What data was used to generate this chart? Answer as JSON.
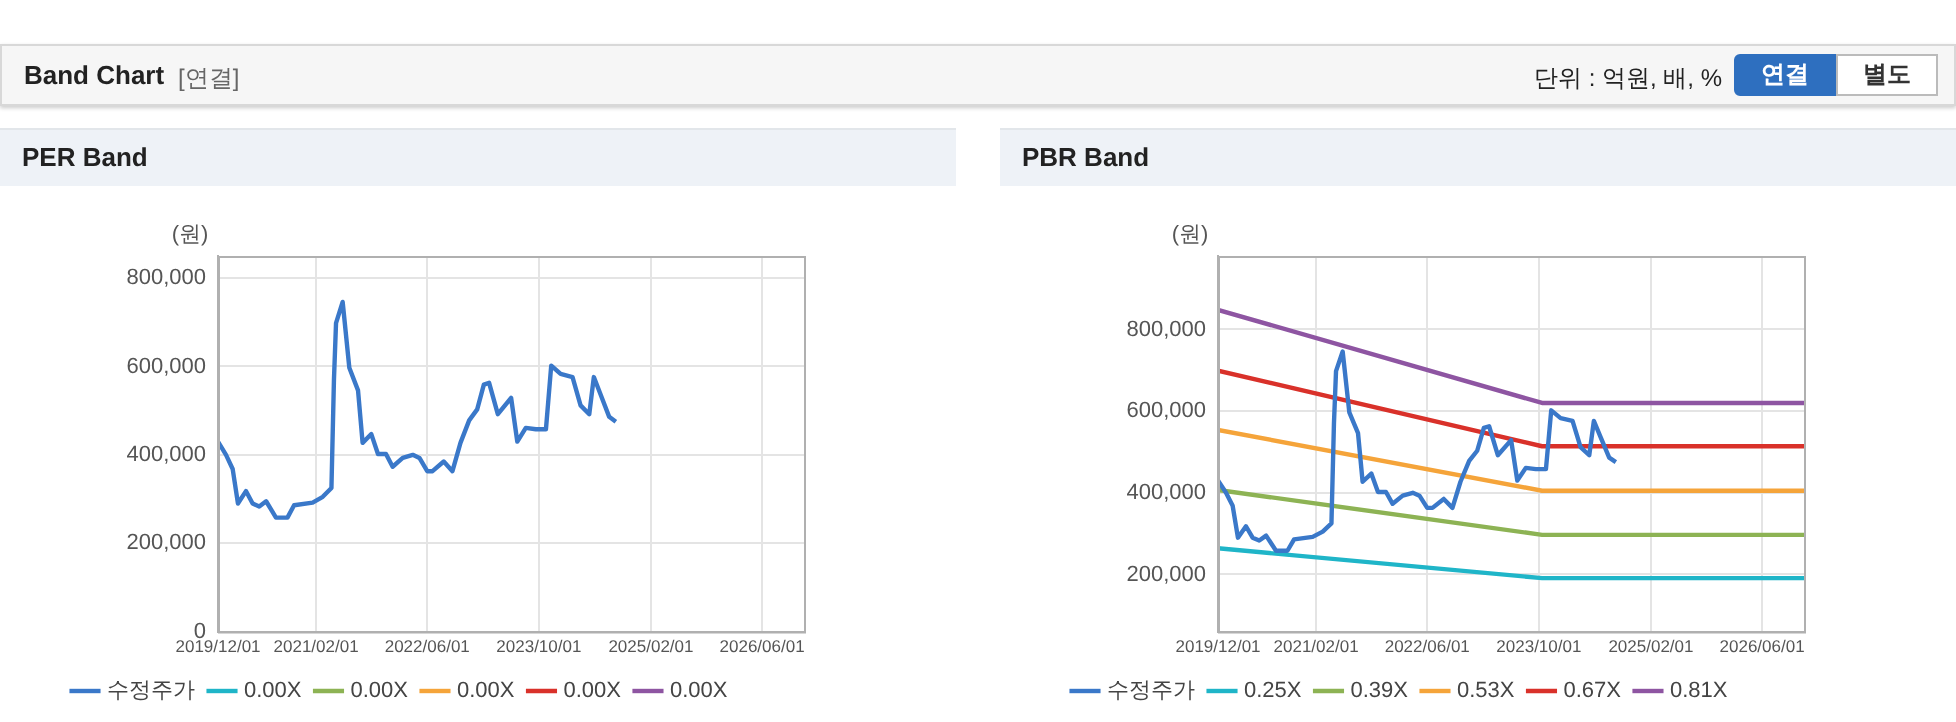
{
  "chart_data": [
    {
      "type": "line",
      "title": "PER Band",
      "ylabel": "(원)",
      "annotations": [
        "Band Chart",
        "[연결]",
        "단위 : 억원, 배, %",
        "연결",
        "별도"
      ],
      "x": [
        "2019-12-01",
        "2020-01-05",
        "2020-02-03",
        "2020-02-26",
        "2020-04-01",
        "2020-04-30",
        "2020-05-29",
        "2020-06-28",
        "2020-08-10",
        "2020-09-29",
        "2020-10-28",
        "2021-01-17",
        "2021-03-02",
        "2021-04-09",
        "2021-04-20",
        "2021-04-29",
        "2021-05-28",
        "2021-06-26",
        "2021-08-03",
        "2021-08-23",
        "2021-09-30",
        "2021-10-29",
        "2021-12-03",
        "2022-01-01",
        "2022-02-14",
        "2022-03-30",
        "2022-04-28",
        "2022-06-01",
        "2022-06-24",
        "2022-08-12",
        "2022-09-19",
        "2022-10-24",
        "2022-12-01",
        "2023-01-05",
        "2023-02-03",
        "2023-02-26",
        "2023-04-05",
        "2023-06-02",
        "2023-06-29",
        "2023-08-05",
        "2023-09-18",
        "2023-11-01",
        "2023-11-24",
        "2024-01-04",
        "2024-02-25",
        "2024-03-31",
        "2024-05-08",
        "2024-05-28",
        "2024-06-26",
        "2024-08-03",
        "2024-09-01"
      ],
      "series": [
        {
          "name": "수정주가",
          "color": "#3a78c9",
          "values": [
            430000,
            400000,
            368000,
            290000,
            318000,
            290000,
            283000,
            295000,
            258000,
            258000,
            286000,
            292000,
            305000,
            325000,
            571000,
            698000,
            746000,
            597000,
            546000,
            427000,
            447000,
            402000,
            402000,
            373000,
            393000,
            400000,
            393000,
            363000,
            363000,
            385000,
            363000,
            427000,
            478000,
            503000,
            559000,
            563000,
            492000,
            529000,
            430000,
            461000,
            458000,
            458000,
            602000,
            583000,
            576000,
            512000,
            492000,
            576000,
            537000,
            486000,
            475000
          ]
        },
        {
          "name": "0.00X",
          "color": "#1fb5c8",
          "values": [
            null,
            null,
            null,
            null,
            null,
            null,
            null,
            null,
            null,
            null,
            null,
            null,
            null,
            null,
            null,
            null,
            null,
            null,
            null,
            null,
            null,
            null,
            null,
            null,
            null,
            null,
            null,
            null,
            null,
            null,
            null,
            null,
            null,
            null,
            null,
            null,
            null,
            null,
            null,
            null,
            null,
            null,
            null,
            null,
            null,
            null,
            null,
            null,
            null,
            null,
            null
          ]
        },
        {
          "name": "0.00X",
          "color": "#8db354",
          "values": [
            null,
            null,
            null,
            null,
            null,
            null,
            null,
            null,
            null,
            null,
            null,
            null,
            null,
            null,
            null,
            null,
            null,
            null,
            null,
            null,
            null,
            null,
            null,
            null,
            null,
            null,
            null,
            null,
            null,
            null,
            null,
            null,
            null,
            null,
            null,
            null,
            null,
            null,
            null,
            null,
            null,
            null,
            null,
            null,
            null,
            null,
            null,
            null,
            null,
            null,
            null
          ]
        },
        {
          "name": "0.00X",
          "color": "#f5a43a",
          "values": [
            null,
            null,
            null,
            null,
            null,
            null,
            null,
            null,
            null,
            null,
            null,
            null,
            null,
            null,
            null,
            null,
            null,
            null,
            null,
            null,
            null,
            null,
            null,
            null,
            null,
            null,
            null,
            null,
            null,
            null,
            null,
            null,
            null,
            null,
            null,
            null,
            null,
            null,
            null,
            null,
            null,
            null,
            null,
            null,
            null,
            null,
            null,
            null,
            null,
            null,
            null
          ]
        },
        {
          "name": "0.00X",
          "color": "#d9312a",
          "values": [
            null,
            null,
            null,
            null,
            null,
            null,
            null,
            null,
            null,
            null,
            null,
            null,
            null,
            null,
            null,
            null,
            null,
            null,
            null,
            null,
            null,
            null,
            null,
            null,
            null,
            null,
            null,
            null,
            null,
            null,
            null,
            null,
            null,
            null,
            null,
            null,
            null,
            null,
            null,
            null,
            null,
            null,
            null,
            null,
            null,
            null,
            null,
            null,
            null,
            null,
            null
          ]
        },
        {
          "name": "0.00X",
          "color": "#8e55a2",
          "values": [
            null,
            null,
            null,
            null,
            null,
            null,
            null,
            null,
            null,
            null,
            null,
            null,
            null,
            null,
            null,
            null,
            null,
            null,
            null,
            null,
            null,
            null,
            null,
            null,
            null,
            null,
            null,
            null,
            null,
            null,
            null,
            null,
            null,
            null,
            null,
            null,
            null,
            null,
            null,
            null,
            null,
            null,
            null,
            null,
            null,
            null,
            null,
            null,
            null,
            null,
            null
          ]
        }
      ],
      "xlim": [
        "2019-12-01",
        "2026-12-01"
      ],
      "xticks": [
        {
          "value": "2019-12-01",
          "label": "2019/12/01"
        },
        {
          "value": "2021-02-01",
          "label": "2021/02/01"
        },
        {
          "value": "2022-06-01",
          "label": "2022/06/01"
        },
        {
          "value": "2023-10-01",
          "label": "2023/10/01"
        },
        {
          "value": "2025-02-01",
          "label": "2025/02/01"
        },
        {
          "value": "2026-06-01",
          "label": "2026/06/01"
        }
      ],
      "ylim": [
        0,
        850000
      ],
      "yticks": [
        0,
        {
          "value": 200000,
          "label": "200,000"
        },
        {
          "value": 400000,
          "label": "400,000"
        },
        {
          "value": 600000,
          "label": "600,000"
        },
        {
          "value": 800000,
          "label": "800,000"
        }
      ],
      "grid": true,
      "legend": "bottom",
      "marker": "none",
      "line_style": "solid"
    },
    {
      "type": "line",
      "title": "PBR Band",
      "ylabel": "(원)",
      "x": [
        "2019-12-01",
        "2020-01-05",
        "2020-02-03",
        "2020-02-26",
        "2020-04-01",
        "2020-04-30",
        "2020-05-29",
        "2020-06-28",
        "2020-08-10",
        "2020-09-29",
        "2020-10-28",
        "2021-01-17",
        "2021-03-02",
        "2021-04-09",
        "2021-04-20",
        "2021-04-29",
        "2021-05-28",
        "2021-06-26",
        "2021-08-03",
        "2021-08-23",
        "2021-09-30",
        "2021-10-29",
        "2021-12-03",
        "2022-01-01",
        "2022-02-14",
        "2022-03-30",
        "2022-04-28",
        "2022-06-01",
        "2022-06-24",
        "2022-08-12",
        "2022-09-19",
        "2022-10-24",
        "2022-12-01",
        "2023-01-05",
        "2023-02-03",
        "2023-02-26",
        "2023-04-05",
        "2023-06-02",
        "2023-06-29",
        "2023-08-05",
        "2023-09-18",
        "2023-11-01",
        "2023-11-24",
        "2024-01-04",
        "2024-02-25",
        "2024-03-31",
        "2024-05-08",
        "2024-05-28",
        "2024-06-26",
        "2024-08-03",
        "2024-09-01"
      ],
      "series": [
        {
          "name": "수정주가",
          "color": "#3a78c9",
          "values": [
            430000,
            400000,
            368000,
            290000,
            318000,
            290000,
            283000,
            295000,
            258000,
            258000,
            286000,
            292000,
            305000,
            325000,
            571000,
            698000,
            746000,
            597000,
            546000,
            427000,
            447000,
            402000,
            402000,
            373000,
            393000,
            400000,
            393000,
            363000,
            363000,
            385000,
            363000,
            427000,
            478000,
            503000,
            559000,
            563000,
            492000,
            529000,
            430000,
            461000,
            458000,
            458000,
            602000,
            583000,
            576000,
            512000,
            492000,
            576000,
            537000,
            486000,
            475000
          ]
        },
        {
          "name": "0.25X",
          "color": "#1fb5c8",
          "x": [
            "2019-12-01",
            "2023-10-15",
            "2026-12-01"
          ],
          "values": [
            264000,
            191000,
            191000
          ]
        },
        {
          "name": "0.39X",
          "color": "#8db354",
          "x": [
            "2019-12-01",
            "2023-10-15",
            "2026-12-01"
          ],
          "values": [
            407000,
            297000,
            297000
          ]
        },
        {
          "name": "0.53X",
          "color": "#f5a43a",
          "x": [
            "2019-12-01",
            "2023-10-15",
            "2026-12-01"
          ],
          "values": [
            554000,
            405000,
            405000
          ]
        },
        {
          "name": "0.67X",
          "color": "#d9312a",
          "x": [
            "2019-12-01",
            "2023-10-15",
            "2026-12-01"
          ],
          "values": [
            699000,
            514000,
            514000
          ]
        },
        {
          "name": "0.81X",
          "color": "#8e55a2",
          "x": [
            "2019-12-01",
            "2023-10-15",
            "2026-12-01"
          ],
          "values": [
            848000,
            620000,
            620000
          ]
        }
      ],
      "xlim": [
        "2019-12-01",
        "2026-12-01"
      ],
      "xticks": [
        {
          "value": "2019-12-01",
          "label": "2019/12/01"
        },
        {
          "value": "2021-02-01",
          "label": "2021/02/01"
        },
        {
          "value": "2022-06-01",
          "label": "2022/06/01"
        },
        {
          "value": "2023-10-01",
          "label": "2023/10/01"
        },
        {
          "value": "2025-02-01",
          "label": "2025/02/01"
        },
        {
          "value": "2026-06-01",
          "label": "2026/06/01"
        }
      ],
      "ylim": [
        60000,
        980000
      ],
      "yticks": [
        {
          "value": 200000,
          "label": "200,000"
        },
        {
          "value": 400000,
          "label": "400,000"
        },
        {
          "value": 600000,
          "label": "600,000"
        },
        {
          "value": 800000,
          "label": "800,000"
        }
      ],
      "grid": true,
      "legend": "bottom",
      "marker": "none",
      "line_style": "solid"
    }
  ]
}
